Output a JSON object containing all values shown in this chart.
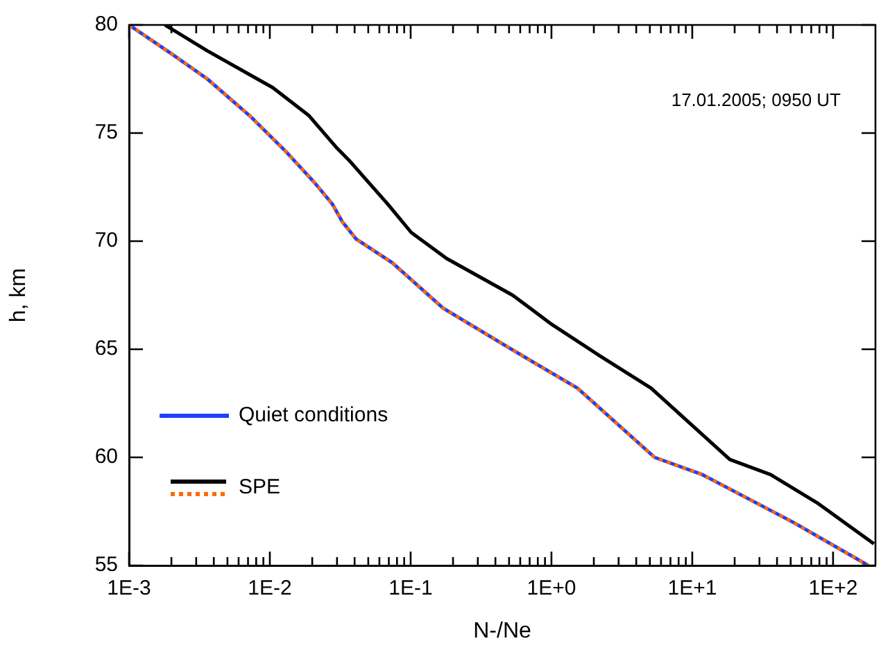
{
  "chart_data": {
    "type": "line",
    "xlabel": "N-/Ne",
    "ylabel": "h, km",
    "log": "x",
    "xlim": [
      0.001,
      200
    ],
    "ylim": [
      55,
      80
    ],
    "xticks": [
      {
        "value": 0.001,
        "label": "1E-3"
      },
      {
        "value": 0.002,
        "label": null
      },
      {
        "value": 0.003,
        "label": null
      },
      {
        "value": 0.004,
        "label": null
      },
      {
        "value": 0.005,
        "label": null
      },
      {
        "value": 0.006,
        "label": null
      },
      {
        "value": 0.007,
        "label": null
      },
      {
        "value": 0.008,
        "label": null
      },
      {
        "value": 0.009,
        "label": null
      },
      {
        "value": 0.01,
        "label": "1E-2"
      },
      {
        "value": 0.02,
        "label": null
      },
      {
        "value": 0.03,
        "label": null
      },
      {
        "value": 0.04,
        "label": null
      },
      {
        "value": 0.05,
        "label": null
      },
      {
        "value": 0.06,
        "label": null
      },
      {
        "value": 0.07,
        "label": null
      },
      {
        "value": 0.08,
        "label": null
      },
      {
        "value": 0.09,
        "label": null
      },
      {
        "value": 0.1,
        "label": "1E-1"
      },
      {
        "value": 0.2,
        "label": null
      },
      {
        "value": 0.3,
        "label": null
      },
      {
        "value": 0.4,
        "label": null
      },
      {
        "value": 0.5,
        "label": null
      },
      {
        "value": 0.6,
        "label": null
      },
      {
        "value": 0.7,
        "label": null
      },
      {
        "value": 0.8,
        "label": null
      },
      {
        "value": 0.9,
        "label": null
      },
      {
        "value": 1,
        "label": "1E+0"
      },
      {
        "value": 2,
        "label": null
      },
      {
        "value": 3,
        "label": null
      },
      {
        "value": 4,
        "label": null
      },
      {
        "value": 5,
        "label": null
      },
      {
        "value": 6,
        "label": null
      },
      {
        "value": 7,
        "label": null
      },
      {
        "value": 8,
        "label": null
      },
      {
        "value": 9,
        "label": null
      },
      {
        "value": 10,
        "label": "1E+1"
      },
      {
        "value": 20,
        "label": null
      },
      {
        "value": 30,
        "label": null
      },
      {
        "value": 40,
        "label": null
      },
      {
        "value": 50,
        "label": null
      },
      {
        "value": 60,
        "label": null
      },
      {
        "value": 70,
        "label": null
      },
      {
        "value": 80,
        "label": null
      },
      {
        "value": 90,
        "label": null
      },
      {
        "value": 100,
        "label": "1E+2"
      }
    ],
    "yticks": [
      55,
      60,
      65,
      70,
      75,
      80
    ],
    "grid": false,
    "legend": "bottom left",
    "marker": "none",
    "annotations": [
      "17.01.2005; 0950 UT"
    ],
    "series": [
      {
        "name": "Quiet conditions",
        "color": "#1f3fff",
        "line_style": "solid",
        "x": [
          0.001,
          0.00197,
          0.0036,
          0.0072,
          0.0132,
          0.0208,
          0.0279,
          0.0327,
          0.041,
          0.074,
          0.17,
          0.49,
          1.53,
          5.4,
          11.8,
          52,
          178
        ],
        "values": [
          80,
          78.7,
          77.5,
          75.8,
          74.1,
          72.7,
          71.7,
          70.9,
          70.1,
          69.0,
          66.9,
          65.1,
          63.2,
          60.0,
          59.2,
          57.0,
          55.0
        ]
      },
      {
        "name": "SPE",
        "color": "#000000",
        "line_style": "solid",
        "x": [
          0.0018,
          0.0036,
          0.0105,
          0.019,
          0.03,
          0.037,
          0.069,
          0.101,
          0.18,
          0.53,
          0.98,
          2.2,
          5.1,
          10.7,
          18.5,
          36,
          77,
          195
        ],
        "values": [
          80,
          78.8,
          77.1,
          75.8,
          74.3,
          73.7,
          71.7,
          70.4,
          69.2,
          67.5,
          66.2,
          64.7,
          63.2,
          61.3,
          59.9,
          59.2,
          57.9,
          56.0
        ]
      },
      {
        "color": "#ff6a00",
        "line_style": "dotted",
        "x": [
          0.001,
          0.00197,
          0.0036,
          0.0072,
          0.0132,
          0.0208,
          0.0279,
          0.0327,
          0.041,
          0.074,
          0.17,
          0.49,
          1.53,
          5.4,
          11.8,
          52,
          178
        ],
        "values": [
          80,
          78.7,
          77.5,
          75.8,
          74.1,
          72.7,
          71.7,
          70.9,
          70.1,
          69.0,
          66.9,
          65.1,
          63.2,
          60.0,
          59.2,
          57.0,
          55.0
        ]
      }
    ]
  }
}
